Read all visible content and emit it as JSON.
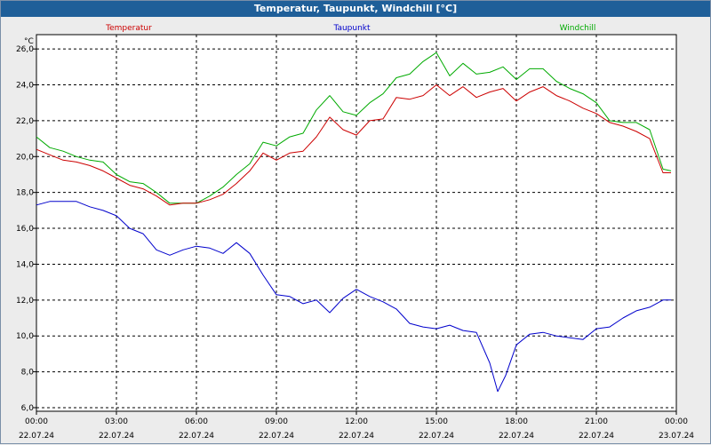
{
  "window": {
    "title": "Temperatur, Taupunkt, Windchill [°C]"
  },
  "chart_data": {
    "type": "line",
    "title": "Temperatur, Taupunkt, Windchill [°C]",
    "ylabel": "°C",
    "xlabel": "",
    "ylim": [
      5.8,
      26.8
    ],
    "xlim": [
      0,
      24
    ],
    "grid": true,
    "legend_placement": "top",
    "y_ticks": [
      "6,0",
      "8,0",
      "10,0",
      "12,0",
      "14,0",
      "16,0",
      "18,0",
      "20,0",
      "22,0",
      "24,0",
      "26,0"
    ],
    "y_tick_values": [
      6,
      8,
      10,
      12,
      14,
      16,
      18,
      20,
      22,
      24,
      26
    ],
    "x_tick_values": [
      0,
      3,
      6,
      9,
      12,
      15,
      18,
      21,
      24
    ],
    "x_ticks": [
      {
        "time": "00:00",
        "date": "22.07.24"
      },
      {
        "time": "03:00",
        "date": "22.07.24"
      },
      {
        "time": "06:00",
        "date": "22.07.24"
      },
      {
        "time": "09:00",
        "date": "22.07.24"
      },
      {
        "time": "12:00",
        "date": "22.07.24"
      },
      {
        "time": "15:00",
        "date": "22.07.24"
      },
      {
        "time": "18:00",
        "date": "22.07.24"
      },
      {
        "time": "21:00",
        "date": "22.07.24"
      },
      {
        "time": "00:00",
        "date": "23.07.24"
      }
    ],
    "series": [
      {
        "name": "Temperatur",
        "color": "#CC0000",
        "points": [
          [
            0.0,
            20.4
          ],
          [
            0.5,
            20.1
          ],
          [
            1.0,
            19.8
          ],
          [
            1.5,
            19.7
          ],
          [
            2.0,
            19.5
          ],
          [
            2.5,
            19.2
          ],
          [
            3.0,
            18.8
          ],
          [
            3.5,
            18.4
          ],
          [
            4.0,
            18.2
          ],
          [
            4.5,
            17.8
          ],
          [
            5.0,
            17.3
          ],
          [
            5.5,
            17.4
          ],
          [
            6.0,
            17.4
          ],
          [
            6.5,
            17.6
          ],
          [
            7.0,
            17.9
          ],
          [
            7.5,
            18.5
          ],
          [
            8.0,
            19.2
          ],
          [
            8.5,
            20.2
          ],
          [
            9.0,
            19.8
          ],
          [
            9.5,
            20.2
          ],
          [
            10.0,
            20.3
          ],
          [
            10.5,
            21.1
          ],
          [
            11.0,
            22.2
          ],
          [
            11.5,
            21.5
          ],
          [
            12.0,
            21.2
          ],
          [
            12.5,
            22.0
          ],
          [
            13.0,
            22.1
          ],
          [
            13.5,
            23.3
          ],
          [
            14.0,
            23.2
          ],
          [
            14.5,
            23.4
          ],
          [
            15.0,
            24.0
          ],
          [
            15.5,
            23.4
          ],
          [
            16.0,
            23.9
          ],
          [
            16.5,
            23.3
          ],
          [
            17.0,
            23.6
          ],
          [
            17.5,
            23.8
          ],
          [
            18.0,
            23.1
          ],
          [
            18.5,
            23.6
          ],
          [
            19.0,
            23.9
          ],
          [
            19.5,
            23.4
          ],
          [
            20.0,
            23.1
          ],
          [
            20.5,
            22.7
          ],
          [
            21.0,
            22.4
          ],
          [
            21.5,
            21.9
          ],
          [
            22.0,
            21.7
          ],
          [
            22.5,
            21.4
          ],
          [
            23.0,
            21.0
          ],
          [
            23.5,
            19.1
          ],
          [
            23.8,
            19.1
          ]
        ]
      },
      {
        "name": "Taupunkt",
        "color": "#0000CC",
        "points": [
          [
            0.0,
            17.3
          ],
          [
            0.5,
            17.5
          ],
          [
            1.0,
            17.5
          ],
          [
            1.5,
            17.5
          ],
          [
            2.0,
            17.2
          ],
          [
            2.5,
            17.0
          ],
          [
            3.0,
            16.7
          ],
          [
            3.5,
            16.0
          ],
          [
            4.0,
            15.7
          ],
          [
            4.5,
            14.8
          ],
          [
            5.0,
            14.5
          ],
          [
            5.5,
            14.8
          ],
          [
            6.0,
            15.0
          ],
          [
            6.5,
            14.9
          ],
          [
            7.0,
            14.6
          ],
          [
            7.5,
            15.2
          ],
          [
            8.0,
            14.6
          ],
          [
            8.5,
            13.4
          ],
          [
            9.0,
            12.3
          ],
          [
            9.5,
            12.2
          ],
          [
            10.0,
            11.8
          ],
          [
            10.5,
            12.0
          ],
          [
            11.0,
            11.3
          ],
          [
            11.5,
            12.1
          ],
          [
            12.0,
            12.6
          ],
          [
            12.5,
            12.2
          ],
          [
            13.0,
            11.9
          ],
          [
            13.5,
            11.5
          ],
          [
            14.0,
            10.7
          ],
          [
            14.5,
            10.5
          ],
          [
            15.0,
            10.4
          ],
          [
            15.5,
            10.6
          ],
          [
            16.0,
            10.3
          ],
          [
            16.5,
            10.2
          ],
          [
            17.0,
            8.5
          ],
          [
            17.3,
            6.9
          ],
          [
            17.6,
            7.8
          ],
          [
            18.0,
            9.5
          ],
          [
            18.5,
            10.1
          ],
          [
            19.0,
            10.2
          ],
          [
            19.5,
            10.0
          ],
          [
            20.0,
            9.9
          ],
          [
            20.5,
            9.8
          ],
          [
            21.0,
            10.4
          ],
          [
            21.5,
            10.5
          ],
          [
            22.0,
            11.0
          ],
          [
            22.5,
            11.4
          ],
          [
            23.0,
            11.6
          ],
          [
            23.5,
            12.0
          ],
          [
            23.8,
            12.0
          ]
        ]
      },
      {
        "name": "Windchill",
        "color": "#00AA00",
        "points": [
          [
            0.0,
            21.1
          ],
          [
            0.5,
            20.5
          ],
          [
            1.0,
            20.3
          ],
          [
            1.5,
            20.0
          ],
          [
            2.0,
            19.8
          ],
          [
            2.5,
            19.7
          ],
          [
            3.0,
            19.0
          ],
          [
            3.5,
            18.6
          ],
          [
            4.0,
            18.5
          ],
          [
            4.5,
            18.0
          ],
          [
            5.0,
            17.4
          ],
          [
            5.5,
            17.4
          ],
          [
            6.0,
            17.4
          ],
          [
            6.5,
            17.8
          ],
          [
            7.0,
            18.3
          ],
          [
            7.5,
            19.0
          ],
          [
            8.0,
            19.6
          ],
          [
            8.5,
            20.8
          ],
          [
            9.0,
            20.6
          ],
          [
            9.5,
            21.1
          ],
          [
            10.0,
            21.3
          ],
          [
            10.5,
            22.6
          ],
          [
            11.0,
            23.4
          ],
          [
            11.5,
            22.5
          ],
          [
            12.0,
            22.3
          ],
          [
            12.5,
            23.0
          ],
          [
            13.0,
            23.5
          ],
          [
            13.5,
            24.4
          ],
          [
            14.0,
            24.6
          ],
          [
            14.5,
            25.3
          ],
          [
            15.0,
            25.8
          ],
          [
            15.5,
            24.5
          ],
          [
            16.0,
            25.2
          ],
          [
            16.5,
            24.6
          ],
          [
            17.0,
            24.7
          ],
          [
            17.5,
            25.0
          ],
          [
            18.0,
            24.3
          ],
          [
            18.5,
            24.9
          ],
          [
            19.0,
            24.9
          ],
          [
            19.5,
            24.2
          ],
          [
            20.0,
            23.8
          ],
          [
            20.5,
            23.5
          ],
          [
            21.0,
            23.0
          ],
          [
            21.5,
            22.0
          ],
          [
            22.0,
            21.9
          ],
          [
            22.5,
            21.9
          ],
          [
            23.0,
            21.5
          ],
          [
            23.5,
            19.3
          ],
          [
            23.8,
            19.2
          ]
        ]
      }
    ]
  }
}
